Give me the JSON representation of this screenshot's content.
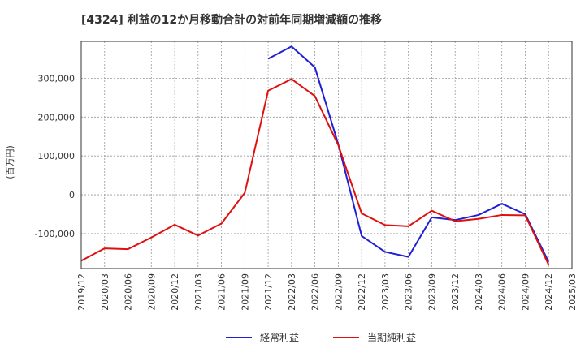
{
  "chart_data": {
    "type": "line",
    "title": "[4324]  利益の12か月移動合計の対前年同期増減額の推移",
    "ylabel": "(百万円)",
    "xlabel": "",
    "ylim": [
      -190000,
      395000
    ],
    "yticks": [
      -100000,
      0,
      100000,
      200000,
      300000
    ],
    "ytick_labels": [
      "-100,000",
      "0",
      "100,000",
      "200,000",
      "300,000"
    ],
    "categories": [
      "2019/12",
      "2020/03",
      "2020/06",
      "2020/09",
      "2020/12",
      "2021/03",
      "2021/06",
      "2021/09",
      "2021/12",
      "2022/03",
      "2022/06",
      "2022/09",
      "2022/12",
      "2023/03",
      "2023/06",
      "2023/09",
      "2023/12",
      "2024/03",
      "2024/06",
      "2024/09",
      "2024/12",
      "2025/03"
    ],
    "grid": true,
    "legend_position": "bottom-center",
    "series": [
      {
        "name": "経常利益",
        "color": "#1f1fd6",
        "values": [
          null,
          null,
          null,
          null,
          null,
          null,
          null,
          null,
          350000,
          382000,
          328000,
          130000,
          -106000,
          -147000,
          -160000,
          -58000,
          -65000,
          -52000,
          -23000,
          -50000,
          -173000,
          null
        ]
      },
      {
        "name": "当期純利益",
        "color": "#e01010",
        "values": [
          -170000,
          -138000,
          -140000,
          -110000,
          -77000,
          -105000,
          -74000,
          5000,
          268000,
          298000,
          254000,
          128000,
          -48000,
          -78000,
          -81000,
          -41000,
          -68000,
          -62000,
          -52000,
          -53000,
          -180000,
          null
        ]
      }
    ]
  }
}
